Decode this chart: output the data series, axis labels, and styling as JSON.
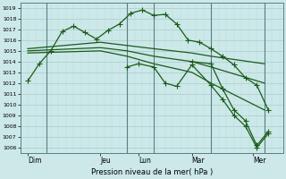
{
  "bg_color": "#cce8e8",
  "grid_major_color": "#aacaca",
  "grid_minor_color": "#bbdada",
  "line_color": "#1a5c1a",
  "title": "Pression niveau de la mer( hPa )",
  "ylim": [
    1005.5,
    1019.5
  ],
  "xlim": [
    -0.5,
    34
  ],
  "yticks": [
    1006,
    1007,
    1008,
    1009,
    1010,
    1011,
    1012,
    1013,
    1014,
    1015,
    1016,
    1017,
    1018,
    1019
  ],
  "day_labels": [
    "Dim",
    "Jeu",
    "Lun",
    "Mar",
    "Mer"
  ],
  "day_positions": [
    0.5,
    10,
    15,
    22,
    30
  ],
  "vlines": [
    3,
    13.5,
    17,
    24.5,
    31.5
  ],
  "series1_x": [
    0.5,
    2,
    3.5,
    5,
    6.5,
    8,
    9.5,
    11,
    12.5,
    14,
    15.5,
    17,
    18.5,
    20,
    21.5,
    23,
    24.5,
    26,
    27.5,
    29,
    30.5,
    32
  ],
  "series1_y": [
    1012.2,
    1013.8,
    1015.0,
    1016.8,
    1017.3,
    1016.7,
    1016.1,
    1016.9,
    1017.5,
    1018.5,
    1018.8,
    1018.3,
    1018.4,
    1017.5,
    1016.0,
    1015.8,
    1015.2,
    1014.5,
    1013.7,
    1012.5,
    1011.8,
    1009.5
  ],
  "series2_x": [
    0.5,
    10,
    13.5,
    17,
    22,
    24.5,
    31.5
  ],
  "series2_y": [
    1015.2,
    1015.8,
    1015.5,
    1015.2,
    1014.8,
    1014.5,
    1013.8
  ],
  "series3_x": [
    0.5,
    10,
    13.5,
    17,
    22,
    24.5,
    31.5
  ],
  "series3_y": [
    1015.0,
    1015.3,
    1015.0,
    1014.5,
    1014.0,
    1013.5,
    1012.0
  ],
  "series4_x": [
    0.5,
    10,
    13.5,
    17,
    22,
    24.5,
    31.5
  ],
  "series4_y": [
    1014.8,
    1015.0,
    1014.5,
    1013.8,
    1013.0,
    1012.0,
    1009.5
  ],
  "series5_x": [
    13.5,
    15,
    17,
    18.5,
    20,
    22,
    24.5,
    26,
    27.5,
    29,
    30.5,
    32
  ],
  "series5_y": [
    1013.5,
    1013.8,
    1013.5,
    1012.0,
    1011.7,
    1013.7,
    1011.8,
    1010.5,
    1009.0,
    1008.0,
    1006.0,
    1007.3
  ],
  "series6_x": [
    22,
    24.5,
    26,
    27.5,
    29,
    30.5,
    32
  ],
  "series6_y": [
    1014.0,
    1013.8,
    1011.5,
    1009.5,
    1008.5,
    1006.2,
    1007.5
  ]
}
